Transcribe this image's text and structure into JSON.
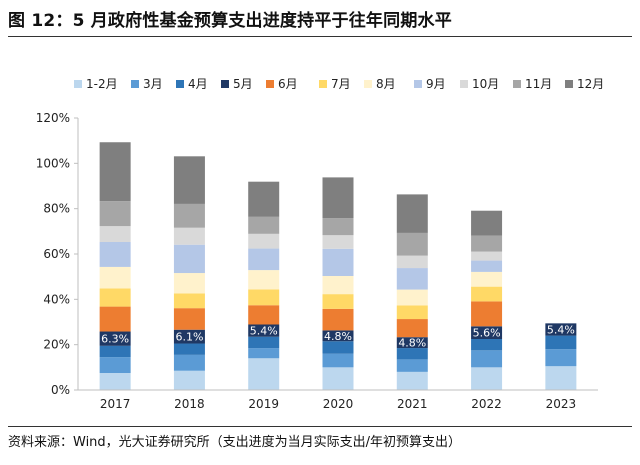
{
  "title": "图 12：5 月政府性基金预算支出进度持平于往年同期水平",
  "source": "资料来源：Wind，光大证券研究所（支出进度为当月实际支出/年初预算支出）",
  "chart_data": {
    "type": "bar",
    "stacked": true,
    "categories": [
      "2017",
      "2018",
      "2019",
      "2020",
      "2021",
      "2022",
      "2023"
    ],
    "ylim": [
      0,
      120
    ],
    "yticks": [
      "0%",
      "20%",
      "40%",
      "60%",
      "80%",
      "100%",
      "120%"
    ],
    "grid": false,
    "legend_position": "top",
    "series": [
      {
        "name": "1-2月",
        "color": "#bcd7ee",
        "values": [
          7.5,
          8.5,
          14.0,
          10.0,
          8.0,
          10.0,
          10.5
        ]
      },
      {
        "name": "3月",
        "color": "#5b9bd5",
        "values": [
          7.0,
          7.0,
          4.5,
          6.0,
          5.5,
          7.5,
          7.5
        ]
      },
      {
        "name": "4月",
        "color": "#2e75b6",
        "values": [
          5.0,
          5.0,
          5.0,
          5.5,
          5.0,
          5.0,
          6.0
        ]
      },
      {
        "name": "5月",
        "color": "#1f3864",
        "values": [
          6.3,
          6.1,
          5.4,
          4.8,
          4.8,
          5.6,
          5.4
        ]
      },
      {
        "name": "6月",
        "color": "#ed7d31",
        "values": [
          11.0,
          9.5,
          8.5,
          9.5,
          8.0,
          11.0,
          null
        ]
      },
      {
        "name": "7月",
        "color": "#ffd966",
        "values": [
          8.0,
          6.5,
          7.0,
          6.5,
          6.0,
          6.5,
          null
        ]
      },
      {
        "name": "8月",
        "color": "#fff2cc",
        "values": [
          9.5,
          9.0,
          8.5,
          8.0,
          7.0,
          6.5,
          null
        ]
      },
      {
        "name": "9月",
        "color": "#b4c7e7",
        "values": [
          11.0,
          12.5,
          9.5,
          12.0,
          9.5,
          5.0,
          null
        ]
      },
      {
        "name": "10月",
        "color": "#d9d9d9",
        "values": [
          7.0,
          7.5,
          6.5,
          6.0,
          5.5,
          4.0,
          null
        ]
      },
      {
        "name": "11月",
        "color": "#a6a6a6",
        "values": [
          11.0,
          10.5,
          7.5,
          7.5,
          10.0,
          7.0,
          null
        ]
      },
      {
        "name": "12月",
        "color": "#7f7f7f",
        "values": [
          26.0,
          21.0,
          15.5,
          18.0,
          17.0,
          11.0,
          null
        ]
      }
    ],
    "data_labels": {
      "series": "5月",
      "values": [
        "6.3%",
        "6.1%",
        "5.4%",
        "4.8%",
        "4.8%",
        "5.6%",
        "5.4%"
      ]
    }
  }
}
